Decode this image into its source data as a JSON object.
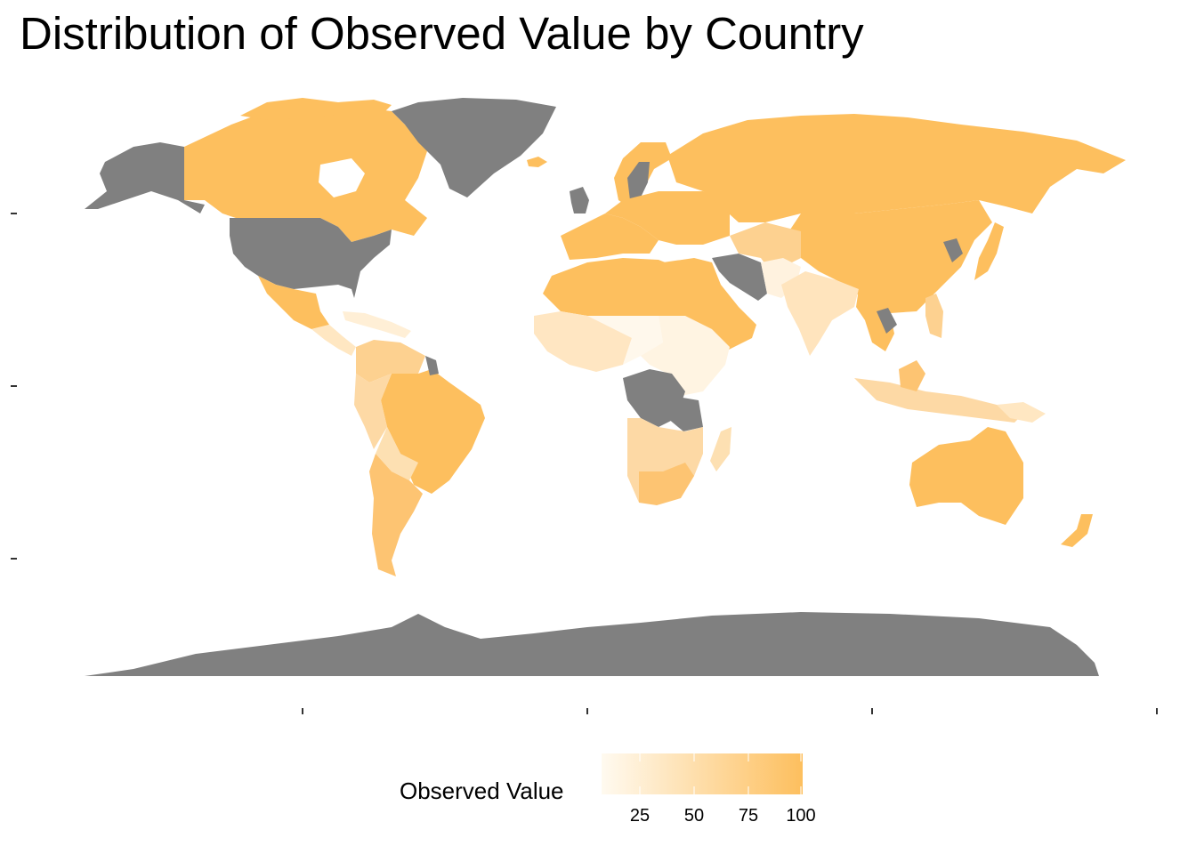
{
  "title": "Distribution of Observed Value by Country",
  "legend": {
    "title": "Observed Value",
    "breaks": [
      "25",
      "50",
      "75",
      "100"
    ],
    "low_color": "#fffaf0",
    "high_color": "#fdbf5e"
  },
  "na_color": "#808080",
  "map_data": {
    "type": "choropleth",
    "variable": "Observed Value",
    "range": [
      5,
      100
    ],
    "no_data_regions": [
      "United States",
      "Greenland",
      "Alaska",
      "Antarctica",
      "Iran",
      "DR Congo",
      "Zambia",
      "United Kingdom",
      "Sweden",
      "Laos",
      "North Korea",
      "Suriname"
    ],
    "high_value_regions": [
      "Canada",
      "Russia",
      "China",
      "Australia",
      "Brazil",
      "Argentina",
      "Algeria",
      "Libya",
      "Saudi Arabia",
      "Mexico",
      "South Africa",
      "New Zealand"
    ],
    "low_value_regions": [
      "Niger",
      "Chad",
      "Sudan",
      "Ethiopia",
      "India",
      "Central African Republic",
      "Afghanistan",
      "Nigeria"
    ]
  }
}
